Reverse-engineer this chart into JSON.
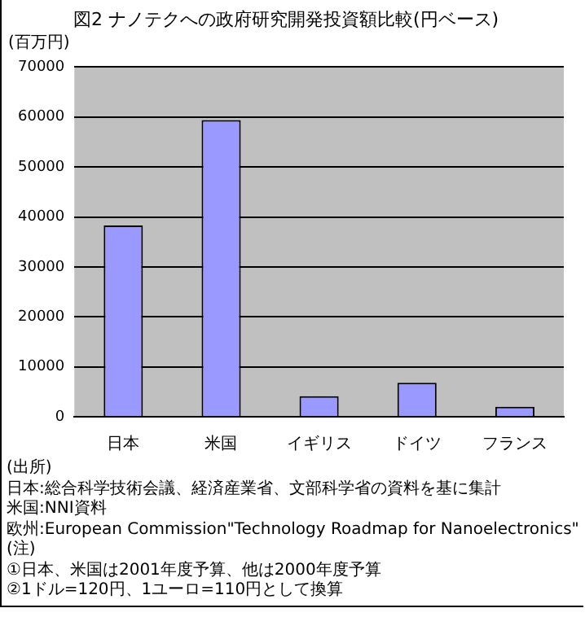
{
  "chart_data": {
    "type": "bar",
    "title": "図2 ナノテクへの政府研究開発投資額比較(円ベース)",
    "ylabel": "(百万円)",
    "categories": [
      "日本",
      "米国",
      "イギリス",
      "ドイツ",
      "フランス"
    ],
    "values": [
      38300,
      59400,
      4100,
      6800,
      2000
    ],
    "color": "#9999ff",
    "ylim": [
      0,
      70000
    ],
    "yticks": [
      0,
      10000,
      20000,
      30000,
      40000,
      50000,
      60000,
      70000
    ],
    "grid": "y",
    "annotations": [
      "(出所)",
      "日本:総合科学技術会議、経済産業省、文部科学省の資料を基に集計",
      "米国:NNI資料",
      "欧州:European Commission\"Technology Roadmap for Nanoelectronics\"",
      "(注)",
      "①日本、米国は2001年度予算、他は2000年度予算",
      "②1ドル=120円、1ユーロ=110円として換算"
    ]
  }
}
